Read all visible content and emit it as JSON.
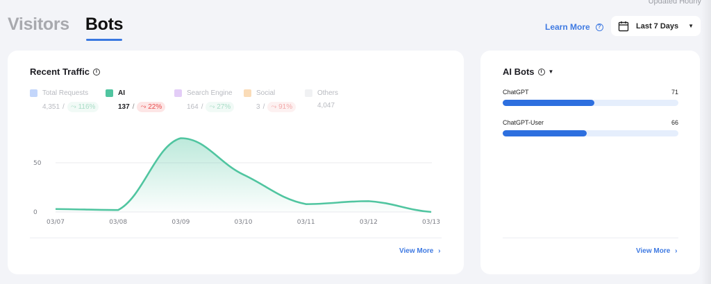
{
  "header": {
    "updated_label": "Updated Hourly",
    "tabs": [
      {
        "label": "Visitors",
        "active": false
      },
      {
        "label": "Bots",
        "active": true
      }
    ],
    "learn_more_label": "Learn More",
    "learn_more_icon": "help-circle-icon",
    "date_range": {
      "icon": "calendar-icon",
      "selected": "Last 7 Days"
    }
  },
  "traffic_card": {
    "title": "Recent Traffic",
    "title_icon": "info-icon",
    "legend": [
      {
        "label": "Total Requests",
        "value": "4,351",
        "change": "116%",
        "direction": "up",
        "color": "#c3d6fb",
        "active": false
      },
      {
        "label": "AI",
        "value": "137",
        "change": "22%",
        "direction": "down",
        "color": "#50c5a0",
        "active": true
      },
      {
        "label": "Search Engine",
        "value": "164",
        "change": "27%",
        "direction": "up",
        "color": "#e3cdf7",
        "active": false
      },
      {
        "label": "Social",
        "value": "3",
        "change": "91%",
        "direction": "down",
        "color": "#fadcb8",
        "active": false
      },
      {
        "label": "Others",
        "value": "4,047",
        "change": null,
        "direction": null,
        "color": "#f0f1f3",
        "active": false
      }
    ],
    "view_more_label": "View More",
    "view_more_icon": "chevron-right-icon"
  },
  "chart_data": {
    "type": "area",
    "title": "Recent Traffic",
    "series": [
      {
        "name": "AI",
        "color": "#50c5a0",
        "values": [
          3,
          2,
          75,
          38,
          8,
          11,
          0
        ]
      }
    ],
    "categories": [
      "03/07",
      "03/08",
      "03/09",
      "03/10",
      "03/11",
      "03/12",
      "03/13"
    ],
    "yticks": [
      0,
      50
    ],
    "ylim": [
      0,
      80
    ],
    "xlabel": "",
    "ylabel": "",
    "grid": true
  },
  "bots_card": {
    "title": "AI Bots",
    "title_icon": "info-icon",
    "dropdown_icon": "caret-down-icon",
    "max": 137,
    "items": [
      {
        "name": "ChatGPT",
        "count": "71",
        "fill_pct": 52
      },
      {
        "name": "ChatGPT-User",
        "count": "66",
        "fill_pct": 48
      }
    ],
    "view_more_label": "View More",
    "view_more_icon": "chevron-right-icon"
  }
}
